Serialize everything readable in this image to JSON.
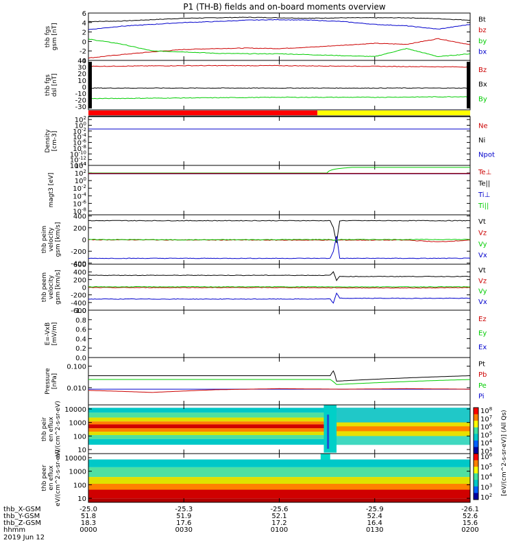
{
  "title": "P1 (TH-B) fields and on-board moments overview",
  "footer": {
    "row_labels": [
      "thb_X-GSM",
      "thb_Y-GSM",
      "thb_Z-GSM",
      "hhmm",
      "2019 Jun 12"
    ],
    "columns": [
      {
        "x": "-25.0",
        "y": "51.8",
        "z": "18.3",
        "t": "0000"
      },
      {
        "x": "-25.3",
        "y": "51.9",
        "z": "17.6",
        "t": "0030"
      },
      {
        "x": "-25.6",
        "y": "52.1",
        "z": "17.2",
        "t": "0100"
      },
      {
        "x": "-25.9",
        "y": "52.4",
        "z": "16.4",
        "t": "0130"
      },
      {
        "x": "-26.1",
        "y": "52.6",
        "z": "15.6",
        "t": "0200"
      }
    ]
  },
  "colorbar": {
    "label": "[eV/(cm^2-s-sr-eV)]  (All Qs)",
    "labels_top": [
      "10^8",
      "10^7",
      "10^6",
      "10^5",
      "10^4",
      "10^3"
    ],
    "labels_bottom": [
      "10^6",
      "10^5",
      "10^4",
      "10^3",
      "10^2"
    ]
  },
  "chart_data": [
    {
      "type": "line",
      "ylabel": "thb fgs gsm [nT]",
      "ylim": [
        -4,
        6
      ],
      "yticks": [
        "6",
        "4",
        "2",
        "0",
        "-2",
        "-4"
      ],
      "legend": [
        {
          "name": "Bt",
          "color": "#000000"
        },
        {
          "name": "bz",
          "color": "#cc0000"
        },
        {
          "name": "by",
          "color": "#00cc00"
        },
        {
          "name": "bx",
          "color": "#0000cc"
        }
      ],
      "series": [
        {
          "name": "Bt",
          "color": "#000000",
          "x": [
            0,
            10,
            20,
            30,
            40,
            50,
            60,
            70,
            80,
            90,
            100,
            110,
            120
          ],
          "y": [
            4.2,
            4.3,
            4.6,
            4.9,
            5.0,
            5.1,
            5.0,
            4.9,
            5.0,
            5.0,
            5.0,
            4.8,
            4.5
          ]
        },
        {
          "name": "bz",
          "color": "#cc0000",
          "x": [
            0,
            10,
            20,
            30,
            40,
            50,
            60,
            70,
            80,
            90,
            100,
            110,
            120
          ],
          "y": [
            -3.5,
            -2.8,
            -2.2,
            -1.7,
            -1.5,
            -1.4,
            -1.5,
            -1.2,
            -0.8,
            -0.4,
            -0.6,
            0.6,
            -0.7
          ]
        },
        {
          "name": "by",
          "color": "#00cc00",
          "x": [
            0,
            10,
            20,
            30,
            40,
            50,
            60,
            70,
            80,
            90,
            100,
            110,
            120
          ],
          "y": [
            0.5,
            -0.5,
            -2.0,
            -2.2,
            -2.5,
            -2.6,
            -2.6,
            -2.8,
            -3.0,
            -3.2,
            -1.5,
            -3.2,
            -2.6
          ]
        },
        {
          "name": "bx",
          "color": "#0000cc",
          "x": [
            0,
            10,
            20,
            30,
            40,
            50,
            60,
            70,
            80,
            90,
            100,
            110,
            120
          ],
          "y": [
            2.5,
            3.2,
            3.6,
            4.0,
            4.2,
            4.5,
            4.6,
            4.5,
            4.2,
            3.6,
            3.3,
            2.6,
            3.6
          ]
        }
      ]
    },
    {
      "type": "line",
      "ylabel": "thb fgs dsl [nT]",
      "ylim": [
        -35,
        40
      ],
      "yticks": [
        "40",
        "30",
        "20",
        "10",
        "0",
        "-10",
        "-20",
        "-30"
      ],
      "legend": [
        {
          "name": "Bz",
          "color": "#cc0000"
        },
        {
          "name": "Bx",
          "color": "#000000"
        },
        {
          "name": "By",
          "color": "#00cc00"
        }
      ],
      "series": [
        {
          "name": "Bz",
          "color": "#cc0000",
          "x": [
            0,
            30,
            60,
            90,
            120
          ],
          "y": [
            31,
            32,
            32,
            31,
            30
          ]
        },
        {
          "name": "Bx",
          "color": "#000000",
          "x": [
            0,
            30,
            60,
            90,
            120
          ],
          "y": [
            -2,
            -2,
            -2,
            -2,
            -2
          ]
        },
        {
          "name": "By",
          "color": "#00cc00",
          "x": [
            0,
            30,
            60,
            90,
            120
          ],
          "y": [
            -18,
            -17,
            -16,
            -16,
            -15
          ]
        }
      ]
    },
    {
      "type": "line",
      "ylabel": "Density [cm-3]",
      "yscale": "log",
      "ylim": [
        -14,
        3
      ],
      "yticks": [
        "10^2",
        "10^0",
        "10^-2",
        "10^-4",
        "10^-6",
        "10^-8",
        "10^-10",
        "10^-12",
        "10^-14"
      ],
      "legend": [
        {
          "name": "Ne",
          "color": "#cc0000"
        },
        {
          "name": "Ni",
          "color": "#000000"
        },
        {
          "name": "Npot",
          "color": "#0000cc"
        }
      ],
      "series": [
        {
          "name": "Ne",
          "color": "#cc0000",
          "x": [
            0,
            120
          ],
          "y": [
            0.05,
            0.05
          ]
        },
        {
          "name": "Ni",
          "color": "#000000",
          "x": [
            0,
            120
          ],
          "y": [
            0.05,
            0.05
          ]
        },
        {
          "name": "Npot",
          "color": "#0000cc",
          "x": [
            0,
            120
          ],
          "y": [
            0.05,
            0.05
          ]
        }
      ]
    },
    {
      "type": "line",
      "ylabel": "magt3 [eV]",
      "yscale": "log",
      "ylim": [
        -9,
        4
      ],
      "yticks": [
        "10^4",
        "10^2",
        "10^0",
        "10^-2",
        "10^-4",
        "10^-6",
        "10^-8"
      ],
      "legend": [
        {
          "name": "Te⊥",
          "color": "#cc0000"
        },
        {
          "name": "Te||",
          "color": "#000000"
        },
        {
          "name": "Ti⊥",
          "color": "#0000cc"
        },
        {
          "name": "Ti||",
          "color": "#00cc00"
        }
      ],
      "series": [
        {
          "name": "Ti||",
          "color": "#00cc00",
          "x": [
            0,
            75,
            83,
            120
          ],
          "y": [
            100,
            100,
            3000,
            3000
          ]
        },
        {
          "name": "Ti⊥",
          "color": "#0000cc",
          "x": [
            0,
            120
          ],
          "y": [
            60,
            60
          ]
        },
        {
          "name": "Te||",
          "color": "#000000",
          "x": [
            0,
            120
          ],
          "y": [
            80,
            80
          ]
        },
        {
          "name": "Te⊥",
          "color": "#cc0000",
          "x": [
            0,
            120
          ],
          "y": [
            70,
            70
          ]
        }
      ]
    },
    {
      "type": "line",
      "ylabel": "thb peim velocity gsm [km/s]",
      "ylim": [
        -420,
        420
      ],
      "yticks": [
        "400",
        "200",
        "0",
        "-200",
        "-400"
      ],
      "legend": [
        {
          "name": "Vt",
          "color": "#000000"
        },
        {
          "name": "Vz",
          "color": "#cc0000"
        },
        {
          "name": "Vy",
          "color": "#00cc00"
        },
        {
          "name": "Vx",
          "color": "#0000cc"
        }
      ],
      "series": [
        {
          "name": "Vt",
          "color": "#000000",
          "x": [
            0,
            76,
            77,
            78,
            79,
            120
          ],
          "y": [
            320,
            320,
            200,
            -60,
            320,
            320
          ]
        },
        {
          "name": "Vz",
          "color": "#cc0000",
          "x": [
            0,
            60,
            100,
            110,
            120
          ],
          "y": [
            -5,
            -10,
            -10,
            -40,
            -10
          ]
        },
        {
          "name": "Vy",
          "color": "#00cc00",
          "x": [
            0,
            30,
            76,
            78,
            79,
            120
          ],
          "y": [
            0,
            -5,
            0,
            -20,
            0,
            0
          ]
        },
        {
          "name": "Vx",
          "color": "#0000cc",
          "x": [
            0,
            76,
            77,
            78,
            79,
            120
          ],
          "y": [
            -320,
            -320,
            -200,
            60,
            -320,
            -320
          ]
        }
      ]
    },
    {
      "type": "line",
      "ylabel": "thb peem velocity gsm [km/s]",
      "ylim": [
        -600,
        600
      ],
      "yticks": [
        "600",
        "400",
        "200",
        "0",
        "-200",
        "-400",
        "-600"
      ],
      "legend": [
        {
          "name": "Vt",
          "color": "#000000"
        },
        {
          "name": "Vz",
          "color": "#cc0000"
        },
        {
          "name": "Vy",
          "color": "#00cc00"
        },
        {
          "name": "Vx",
          "color": "#0000cc"
        }
      ],
      "series": [
        {
          "name": "Vt",
          "color": "#000000",
          "x": [
            0,
            76,
            77,
            78,
            79,
            120
          ],
          "y": [
            310,
            310,
            400,
            180,
            280,
            280
          ]
        },
        {
          "name": "Vz",
          "color": "#cc0000",
          "x": [
            0,
            60,
            100,
            120
          ],
          "y": [
            -10,
            -10,
            -20,
            -10
          ]
        },
        {
          "name": "Vy",
          "color": "#00cc00",
          "x": [
            0,
            60,
            120
          ],
          "y": [
            10,
            10,
            10
          ]
        },
        {
          "name": "Vx",
          "color": "#0000cc",
          "x": [
            0,
            76,
            77,
            78,
            79,
            120
          ],
          "y": [
            -310,
            -310,
            -420,
            -150,
            -290,
            -290
          ]
        }
      ]
    },
    {
      "type": "line",
      "ylabel": "E=-VxB [mV/m]",
      "ylim": [
        0,
        1
      ],
      "yticks": [
        "1.0",
        "0.8",
        "0.6",
        "0.4",
        "0.2",
        "0.0"
      ],
      "legend": [
        {
          "name": "Ez",
          "color": "#cc0000"
        },
        {
          "name": "Ey",
          "color": "#00cc00"
        },
        {
          "name": "Ex",
          "color": "#0000cc"
        }
      ],
      "series": []
    },
    {
      "type": "line",
      "ylabel": "Pressure [nPa]",
      "yscale": "log",
      "ylim": [
        -2.8,
        -0.6
      ],
      "yticks": [
        "0.100",
        "0.010"
      ],
      "legend": [
        {
          "name": "Pt",
          "color": "#000000"
        },
        {
          "name": "Pb",
          "color": "#cc0000"
        },
        {
          "name": "Pe",
          "color": "#00cc00"
        },
        {
          "name": "Pi",
          "color": "#0000cc"
        }
      ],
      "series": [
        {
          "name": "Pt",
          "color": "#000000",
          "x": [
            0,
            76,
            77,
            78,
            120
          ],
          "y": [
            0.036,
            0.036,
            0.06,
            0.02,
            0.036
          ]
        },
        {
          "name": "Pe",
          "color": "#00cc00",
          "x": [
            0,
            76,
            78,
            120
          ],
          "y": [
            0.024,
            0.024,
            0.014,
            0.024
          ]
        },
        {
          "name": "Pi",
          "color": "#0000cc",
          "x": [
            0,
            120
          ],
          "y": [
            0.0085,
            0.0085
          ]
        },
        {
          "name": "Pb",
          "color": "#cc0000",
          "x": [
            0,
            20,
            40,
            60,
            80,
            100,
            120
          ],
          "y": [
            0.0075,
            0.006,
            0.008,
            0.009,
            0.0085,
            0.009,
            0.0085
          ]
        }
      ]
    },
    {
      "type": "heatmap",
      "ylabel": "thb peir en eflux eV/(cm^2-s-sr-eV)",
      "yscale": "log",
      "ylim": [
        5,
        20000
      ],
      "yticks": [
        "10000",
        "1000",
        "100",
        "10"
      ]
    },
    {
      "type": "heatmap",
      "ylabel": "thb peer en eflux eV/(cm^2-s-sr-eV)",
      "yscale": "log",
      "ylim": [
        5,
        20000
      ],
      "yticks": [
        "10000",
        "1000",
        "100",
        "10"
      ]
    }
  ]
}
